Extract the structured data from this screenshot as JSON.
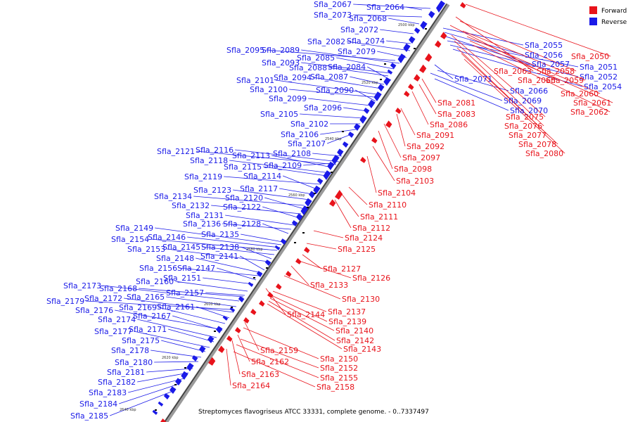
{
  "legend": {
    "forward": {
      "label": "Forward",
      "color": "#e8131b"
    },
    "reverse": {
      "label": "Reverse",
      "color": "#1a1ae8"
    }
  },
  "caption": "Streptomyces flavogriseus ATCC 33331, complete genome. - 0..7337497",
  "ticks": [
    "2500 kbp",
    "2520 kbp",
    "2540 kbp",
    "2560 kbp",
    "2580 kbp",
    "2600 kbp",
    "2620 kbp",
    "2640 kbp"
  ],
  "reverse_genes": [
    "Sfla_2067",
    "Sfla_2064",
    "Sfla_2073",
    "Sfla_2068",
    "Sfla_2072",
    "Sfla_2074",
    "Sfla_2082",
    "Sfla_2079",
    "Sfla_2095",
    "Sfla_2089",
    "Sfla_2085",
    "Sfla_2093",
    "Sfla_2088",
    "Sfla_2084",
    "Sfla_2087",
    "Sfla_2094",
    "Sfla_2101",
    "Sfla_2100",
    "Sfla_2090",
    "Sfla_2099",
    "Sfla_2096",
    "Sfla_2105",
    "Sfla_2102",
    "Sfla_2106",
    "Sfla_2107",
    "Sfla_2121",
    "Sfla_2116",
    "Sfla_2108",
    "Sfla_2113",
    "Sfla_2118",
    "Sfla_2115",
    "Sfla_2109",
    "Sfla_2119",
    "Sfla_2114",
    "Sfla_2117",
    "Sfla_2123",
    "Sfla_2134",
    "Sfla_2120",
    "Sfla_2132",
    "Sfla_2122",
    "Sfla_2131",
    "Sfla_2136",
    "Sfla_2128",
    "Sfla_2149",
    "Sfla_2135",
    "Sfla_2146",
    "Sfla_2154",
    "Sfla_2145",
    "Sfla_2138",
    "Sfla_2153",
    "Sfla_2141",
    "Sfla_2148",
    "Sfla_2156",
    "Sfla_2147",
    "Sfla_2151",
    "Sfla_2160",
    "Sfla_2173",
    "Sfla_2168",
    "Sfla_2157",
    "Sfla_2165",
    "Sfla_2179",
    "Sfla_2172",
    "Sfla_2161",
    "Sfla_2169",
    "Sfla_2176",
    "Sfla_2167",
    "Sfla_2174",
    "Sfla_2171",
    "Sfla_2177",
    "Sfla_2175",
    "Sfla_2178",
    "Sfla_2180",
    "Sfla_2181",
    "Sfla_2182",
    "Sfla_2183",
    "Sfla_2184",
    "Sfla_2185",
    "Sfla_2055",
    "Sfla_2056",
    "Sfla_2057",
    "Sfla_2051",
    "Sfla_2052",
    "Sfla_2054",
    "Sfla_2071",
    "Sfla_2066",
    "Sfla_2069",
    "Sfla_2070"
  ],
  "forward_genes": [
    "Sfla_2050",
    "Sfla_2063",
    "Sfla_2058",
    "Sfla_2065",
    "Sfla_2059",
    "Sfla_2060",
    "Sfla_2061",
    "Sfla_2062",
    "Sfla_2081",
    "Sfla_2083",
    "Sfla_2075",
    "Sfla_2076",
    "Sfla_2086",
    "Sfla_2077",
    "Sfla_2091",
    "Sfla_2078",
    "Sfla_2092",
    "Sfla_2080",
    "Sfla_2097",
    "Sfla_2098",
    "Sfla_2103",
    "Sfla_2104",
    "Sfla_2110",
    "Sfla_2111",
    "Sfla_2112",
    "Sfla_2124",
    "Sfla_2125",
    "Sfla_2127",
    "Sfla_2126",
    "Sfla_2133",
    "Sfla_2130",
    "Sfla_2144",
    "Sfla_2137",
    "Sfla_2139",
    "Sfla_2140",
    "Sfla_2142",
    "Sfla_2143",
    "Sfla_2159",
    "Sfla_2150",
    "Sfla_2162",
    "Sfla_2152",
    "Sfla_2163",
    "Sfla_2155",
    "Sfla_2164",
    "Sfla_2158"
  ]
}
